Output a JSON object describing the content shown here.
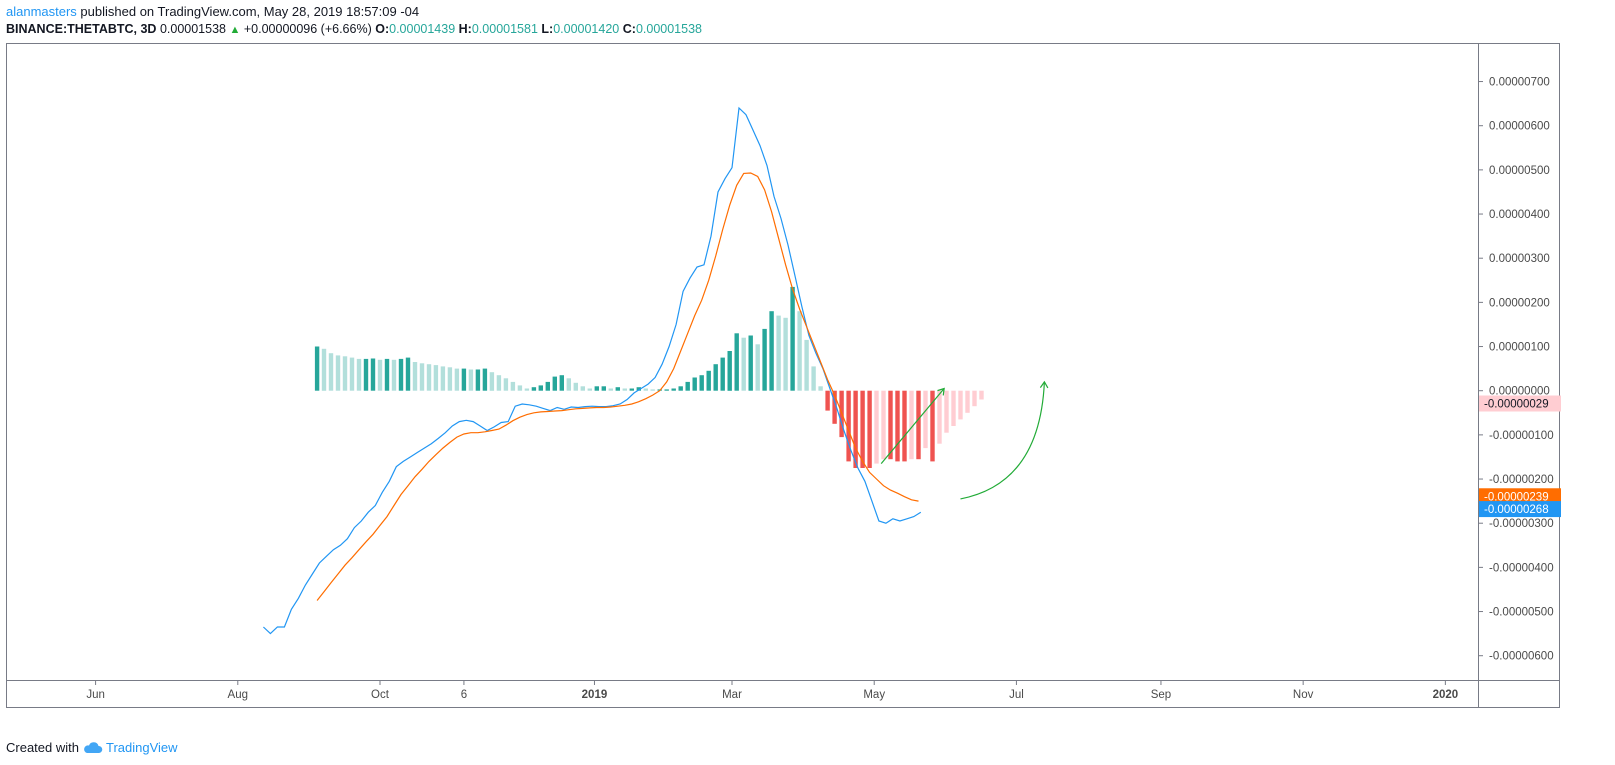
{
  "header": {
    "author": "alanmasters",
    "published": " published on TradingView.com, May 28, 2019 18:57:09 -04",
    "symbol": "BINANCE:THETABTC, 3D",
    "last": "0.00001538",
    "arrow": "▲",
    "change": "+0.00000096 (+6.66%)",
    "o_label": "O:",
    "o_value": "0.00001439",
    "h_label": "H:",
    "h_value": "0.00001581",
    "l_label": "L:",
    "l_value": "0.00001420",
    "c_label": "C:",
    "c_value": "0.00001538"
  },
  "footer": {
    "created_with": "Created with",
    "brand": "TradingView"
  },
  "colors": {
    "macd_line": "#2196f3",
    "signal_line": "#ff6d00",
    "hist_pos_strong": "#26a69a",
    "hist_pos_weak": "#b2dfdb",
    "hist_neg_strong": "#ef5350",
    "hist_neg_weak": "#ffcdd2",
    "annotation": "#22ab37"
  },
  "chart_data": {
    "type": "line",
    "x_axis": {
      "labels": [
        "Jun",
        "Aug",
        "Oct",
        "6",
        "2019",
        "Mar",
        "May",
        "Jul",
        "Sep",
        "Nov",
        "2020"
      ],
      "bold_labels": [
        "2019",
        "2020"
      ],
      "dates": [
        "2018-06-01",
        "2018-08-01",
        "2018-10-01",
        "2018-11-06",
        "2019-01-01",
        "2019-03-01",
        "2019-05-01",
        "2019-07-01",
        "2019-09-01",
        "2019-11-01",
        "2020-01-01"
      ],
      "range": [
        "2018-04-24",
        "2020-01-15"
      ]
    },
    "y_axis": {
      "labels": [
        "0.00000700",
        "0.00000600",
        "0.00000500",
        "0.00000400",
        "0.00000300",
        "0.00000200",
        "0.00000100",
        "0.00000000",
        "-0.00000100",
        "-0.00000200",
        "-0.00000300",
        "-0.00000400",
        "-0.00000500",
        "-0.00000600"
      ],
      "ticks": [
        7e-06,
        6e-06,
        5e-06,
        4e-06,
        3e-06,
        2e-06,
        1e-06,
        0,
        -1e-06,
        -2e-06,
        -3e-06,
        -4e-06,
        -5e-06,
        -6e-06
      ],
      "ylim": [
        -6.55e-06,
        7.85e-06
      ]
    },
    "price_tags": [
      {
        "label": "-0.00000029",
        "value": -2.9e-07,
        "bg": "#ffcdd2",
        "fg": "#131722"
      },
      {
        "label": "-0.00000239",
        "value": -2.39e-06,
        "bg": "#ff6d00",
        "fg": "#ffffff"
      },
      {
        "label": "-0.00000268",
        "value": -2.68e-06,
        "bg": "#2196f3",
        "fg": "#ffffff"
      }
    ],
    "series": [
      {
        "name": "MACD",
        "kind": "line",
        "color": "#2196f3",
        "points": [
          [
            "2018-08-12",
            -5.35e-06
          ],
          [
            "2018-08-15",
            -5.5e-06
          ],
          [
            "2018-08-18",
            -5.35e-06
          ],
          [
            "2018-08-21",
            -5.35e-06
          ],
          [
            "2018-08-24",
            -4.95e-06
          ],
          [
            "2018-08-27",
            -4.7e-06
          ],
          [
            "2018-08-30",
            -4.4e-06
          ],
          [
            "2018-09-02",
            -4.15e-06
          ],
          [
            "2018-09-05",
            -3.9e-06
          ],
          [
            "2018-09-08",
            -3.75e-06
          ],
          [
            "2018-09-11",
            -3.6e-06
          ],
          [
            "2018-09-14",
            -3.5e-06
          ],
          [
            "2018-09-17",
            -3.35e-06
          ],
          [
            "2018-09-20",
            -3.1e-06
          ],
          [
            "2018-09-23",
            -2.95e-06
          ],
          [
            "2018-09-26",
            -2.75e-06
          ],
          [
            "2018-09-29",
            -2.6e-06
          ],
          [
            "2018-10-02",
            -2.3e-06
          ],
          [
            "2018-10-05",
            -2.05e-06
          ],
          [
            "2018-10-08",
            -1.72e-06
          ],
          [
            "2018-10-11",
            -1.6e-06
          ],
          [
            "2018-10-14",
            -1.5e-06
          ],
          [
            "2018-10-17",
            -1.4e-06
          ],
          [
            "2018-10-20",
            -1.3e-06
          ],
          [
            "2018-10-23",
            -1.2e-06
          ],
          [
            "2018-10-26",
            -1.08e-06
          ],
          [
            "2018-10-29",
            -9.5e-07
          ],
          [
            "2018-11-01",
            -8e-07
          ],
          [
            "2018-11-04",
            -7e-07
          ],
          [
            "2018-11-07",
            -6.7e-07
          ],
          [
            "2018-11-10",
            -7e-07
          ],
          [
            "2018-11-13",
            -8e-07
          ],
          [
            "2018-11-16",
            -9e-07
          ],
          [
            "2018-11-19",
            -8.2e-07
          ],
          [
            "2018-11-22",
            -7.2e-07
          ],
          [
            "2018-11-25",
            -7e-07
          ],
          [
            "2018-11-28",
            -3.5e-07
          ],
          [
            "2018-12-01",
            -3e-07
          ],
          [
            "2018-12-04",
            -3.2e-07
          ],
          [
            "2018-12-07",
            -3.5e-07
          ],
          [
            "2018-12-10",
            -4e-07
          ],
          [
            "2018-12-13",
            -4.5e-07
          ],
          [
            "2018-12-16",
            -3.8e-07
          ],
          [
            "2018-12-19",
            -4.2e-07
          ],
          [
            "2018-12-22",
            -3.7e-07
          ],
          [
            "2018-12-25",
            -3.8e-07
          ],
          [
            "2018-12-28",
            -3.6e-07
          ],
          [
            "2018-12-31",
            -3.5e-07
          ],
          [
            "2019-01-03",
            -3.6e-07
          ],
          [
            "2019-01-06",
            -3.6e-07
          ],
          [
            "2019-01-09",
            -3.4e-07
          ],
          [
            "2019-01-12",
            -3e-07
          ],
          [
            "2019-01-15",
            -2e-07
          ],
          [
            "2019-01-18",
            -5e-08
          ],
          [
            "2019-01-21",
            5e-08
          ],
          [
            "2019-01-24",
            1.5e-07
          ],
          [
            "2019-01-27",
            3e-07
          ],
          [
            "2019-01-30",
            6e-07
          ],
          [
            "2019-02-02",
            1e-06
          ],
          [
            "2019-02-05",
            1.5e-06
          ],
          [
            "2019-02-08",
            2.25e-06
          ],
          [
            "2019-02-11",
            2.55e-06
          ],
          [
            "2019-02-14",
            2.8e-06
          ],
          [
            "2019-02-17",
            2.85e-06
          ],
          [
            "2019-02-20",
            3.5e-06
          ],
          [
            "2019-02-23",
            4.5e-06
          ],
          [
            "2019-02-26",
            4.8e-06
          ],
          [
            "2019-03-01",
            5.05e-06
          ],
          [
            "2019-03-04",
            6.4e-06
          ],
          [
            "2019-03-07",
            6.25e-06
          ],
          [
            "2019-03-10",
            5.9e-06
          ],
          [
            "2019-03-13",
            5.55e-06
          ],
          [
            "2019-03-16",
            5.1e-06
          ],
          [
            "2019-03-19",
            4.4e-06
          ],
          [
            "2019-03-22",
            3.9e-06
          ],
          [
            "2019-03-25",
            3.3e-06
          ],
          [
            "2019-03-28",
            2.6e-06
          ],
          [
            "2019-03-31",
            1.9e-06
          ],
          [
            "2019-04-03",
            1.25e-06
          ],
          [
            "2019-04-06",
            8.5e-07
          ],
          [
            "2019-04-09",
            5e-07
          ],
          [
            "2019-04-12",
            5e-08
          ],
          [
            "2019-04-15",
            -4e-07
          ],
          [
            "2019-04-18",
            -9e-07
          ],
          [
            "2019-04-21",
            -1.35e-06
          ],
          [
            "2019-04-24",
            -1.75e-06
          ],
          [
            "2019-04-27",
            -2.05e-06
          ],
          [
            "2019-04-30",
            -2.5e-06
          ],
          [
            "2019-05-03",
            -2.95e-06
          ],
          [
            "2019-05-06",
            -3e-06
          ],
          [
            "2019-05-09",
            -2.9e-06
          ],
          [
            "2019-05-12",
            -2.95e-06
          ],
          [
            "2019-05-15",
            -2.9e-06
          ],
          [
            "2019-05-18",
            -2.85e-06
          ],
          [
            "2019-05-21",
            -2.75e-06
          ]
        ]
      },
      {
        "name": "Signal",
        "kind": "line",
        "color": "#ff6d00",
        "points": [
          [
            "2018-09-04",
            -4.75e-06
          ],
          [
            "2018-09-07",
            -4.55e-06
          ],
          [
            "2018-09-10",
            -4.35e-06
          ],
          [
            "2018-09-13",
            -4.15e-06
          ],
          [
            "2018-09-16",
            -3.95e-06
          ],
          [
            "2018-09-19",
            -3.78e-06
          ],
          [
            "2018-09-22",
            -3.6e-06
          ],
          [
            "2018-09-25",
            -3.42e-06
          ],
          [
            "2018-09-28",
            -3.25e-06
          ],
          [
            "2018-10-01",
            -3.05e-06
          ],
          [
            "2018-10-04",
            -2.85e-06
          ],
          [
            "2018-10-07",
            -2.6e-06
          ],
          [
            "2018-10-10",
            -2.35e-06
          ],
          [
            "2018-10-13",
            -2.15e-06
          ],
          [
            "2018-10-16",
            -1.95e-06
          ],
          [
            "2018-10-19",
            -1.78e-06
          ],
          [
            "2018-10-22",
            -1.6e-06
          ],
          [
            "2018-10-25",
            -1.45e-06
          ],
          [
            "2018-10-28",
            -1.3e-06
          ],
          [
            "2018-10-31",
            -1.17e-06
          ],
          [
            "2018-11-03",
            -1.05e-06
          ],
          [
            "2018-11-06",
            -9.8e-07
          ],
          [
            "2018-11-09",
            -9.5e-07
          ],
          [
            "2018-11-12",
            -9.5e-07
          ],
          [
            "2018-11-15",
            -9.3e-07
          ],
          [
            "2018-11-18",
            -9e-07
          ],
          [
            "2018-11-21",
            -8.7e-07
          ],
          [
            "2018-11-24",
            -7.8e-07
          ],
          [
            "2018-11-27",
            -6.8e-07
          ],
          [
            "2018-11-30",
            -6e-07
          ],
          [
            "2018-12-03",
            -5.4e-07
          ],
          [
            "2018-12-06",
            -5e-07
          ],
          [
            "2018-12-09",
            -4.8e-07
          ],
          [
            "2018-12-12",
            -4.7e-07
          ],
          [
            "2018-12-15",
            -4.6e-07
          ],
          [
            "2018-12-18",
            -4.5e-07
          ],
          [
            "2018-12-21",
            -4.3e-07
          ],
          [
            "2018-12-24",
            -4.1e-07
          ],
          [
            "2018-12-27",
            -4e-07
          ],
          [
            "2018-12-30",
            -3.9e-07
          ],
          [
            "2019-01-02",
            -3.8e-07
          ],
          [
            "2019-01-05",
            -3.8e-07
          ],
          [
            "2019-01-08",
            -3.7e-07
          ],
          [
            "2019-01-11",
            -3.5e-07
          ],
          [
            "2019-01-14",
            -3.3e-07
          ],
          [
            "2019-01-17",
            -3e-07
          ],
          [
            "2019-01-20",
            -2.5e-07
          ],
          [
            "2019-01-23",
            -1.8e-07
          ],
          [
            "2019-01-26",
            -1e-07
          ],
          [
            "2019-01-29",
            0.0
          ],
          [
            "2019-02-01",
            2e-07
          ],
          [
            "2019-02-04",
            5e-07
          ],
          [
            "2019-02-07",
            9e-07
          ],
          [
            "2019-02-10",
            1.3e-06
          ],
          [
            "2019-02-13",
            1.7e-06
          ],
          [
            "2019-02-16",
            2.05e-06
          ],
          [
            "2019-02-19",
            2.5e-06
          ],
          [
            "2019-02-22",
            3.05e-06
          ],
          [
            "2019-02-25",
            3.65e-06
          ],
          [
            "2019-02-28",
            4.2e-06
          ],
          [
            "2019-03-03",
            4.65e-06
          ],
          [
            "2019-03-06",
            4.92e-06
          ],
          [
            "2019-03-09",
            4.93e-06
          ],
          [
            "2019-03-12",
            4.85e-06
          ],
          [
            "2019-03-15",
            4.55e-06
          ],
          [
            "2019-03-18",
            4.05e-06
          ],
          [
            "2019-03-21",
            3.45e-06
          ],
          [
            "2019-03-24",
            2.85e-06
          ],
          [
            "2019-03-27",
            2.3e-06
          ],
          [
            "2019-03-30",
            1.85e-06
          ],
          [
            "2019-04-02",
            1.45e-06
          ],
          [
            "2019-04-05",
            1.05e-06
          ],
          [
            "2019-04-08",
            6.5e-07
          ],
          [
            "2019-04-11",
            2.5e-07
          ],
          [
            "2019-04-14",
            -1e-07
          ],
          [
            "2019-04-17",
            -5e-07
          ],
          [
            "2019-04-20",
            -9e-07
          ],
          [
            "2019-04-23",
            -1.3e-06
          ],
          [
            "2019-04-26",
            -1.6e-06
          ],
          [
            "2019-04-29",
            -1.85e-06
          ],
          [
            "2019-05-02",
            -2e-06
          ],
          [
            "2019-05-05",
            -2.15e-06
          ],
          [
            "2019-05-08",
            -2.25e-06
          ],
          [
            "2019-05-11",
            -2.32e-06
          ],
          [
            "2019-05-14",
            -2.4e-06
          ],
          [
            "2019-05-17",
            -2.47e-06
          ],
          [
            "2019-05-20",
            -2.5e-06
          ]
        ]
      },
      {
        "name": "Histogram",
        "kind": "bar",
        "start": "2018-09-04",
        "step_days": 3,
        "values": [
          1e-06,
          9.5e-07,
          8.5e-07,
          8e-07,
          7.8e-07,
          7.5e-07,
          7.2e-07,
          7.2e-07,
          7.3e-07,
          7e-07,
          7.2e-07,
          7e-07,
          7.2e-07,
          7.5e-07,
          6.5e-07,
          6.2e-07,
          6e-07,
          5.8e-07,
          5.5e-07,
          5.3e-07,
          5e-07,
          5e-07,
          4.8e-07,
          4.8e-07,
          5e-07,
          4.2e-07,
          3.5e-07,
          2.8e-07,
          2e-07,
          1.2e-07,
          5e-08,
          8e-08,
          1.2e-07,
          2e-07,
          3.2e-07,
          3.5e-07,
          2.8e-07,
          1.8e-07,
          1e-07,
          5e-08,
          1e-07,
          1e-07,
          5e-08,
          8e-08,
          5e-08,
          5e-08,
          8e-08,
          5e-08,
          3e-08,
          3e-08,
          3e-08,
          5e-08,
          1e-07,
          2e-07,
          3e-07,
          3.5e-07,
          4.5e-07,
          6e-07,
          7.5e-07,
          9e-07,
          1.3e-06,
          1.2e-06,
          1.25e-06,
          1.05e-06,
          1.4e-06,
          1.8e-06,
          1.7e-06,
          1.65e-06,
          2.35e-06,
          1.8e-06,
          1.15e-06,
          5.5e-07,
          1e-07,
          -4.5e-07,
          -7.5e-07,
          -1.05e-06,
          -1.6e-06,
          -1.75e-06,
          -1.75e-06,
          -1.75e-06,
          -1.65e-06,
          -1.55e-06,
          -1.55e-06,
          -1.6e-06,
          -1.6e-06,
          -1.55e-06,
          -1.55e-06,
          -1.3e-06,
          -1.6e-06,
          -1.2e-06,
          -9.5e-07,
          -8e-07,
          -6.5e-07,
          -5e-07,
          -3.5e-07,
          -2e-07
        ]
      }
    ],
    "annotations": [
      {
        "kind": "arrow-line",
        "from": [
          "2019-05-04",
          -1.65e-06
        ],
        "to": [
          "2019-05-31",
          5e-08
        ]
      },
      {
        "kind": "arrow-curve",
        "from": [
          "2019-06-07",
          -2.45e-06
        ],
        "ctrl": [
          "2019-07-11",
          -2.1e-06
        ],
        "to": [
          "2019-07-13",
          2e-07
        ]
      }
    ]
  }
}
